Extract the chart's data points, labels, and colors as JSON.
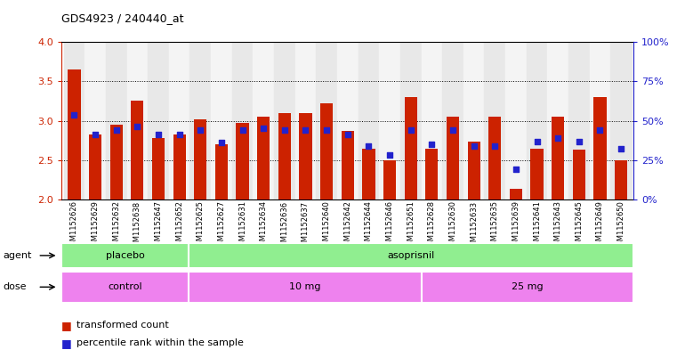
{
  "title": "GDS4923 / 240440_at",
  "samples": [
    "GSM1152626",
    "GSM1152629",
    "GSM1152632",
    "GSM1152638",
    "GSM1152647",
    "GSM1152652",
    "GSM1152625",
    "GSM1152627",
    "GSM1152631",
    "GSM1152634",
    "GSM1152636",
    "GSM1152637",
    "GSM1152640",
    "GSM1152642",
    "GSM1152644",
    "GSM1152646",
    "GSM1152651",
    "GSM1152628",
    "GSM1152630",
    "GSM1152633",
    "GSM1152635",
    "GSM1152639",
    "GSM1152641",
    "GSM1152643",
    "GSM1152645",
    "GSM1152649",
    "GSM1152650"
  ],
  "red_values": [
    3.65,
    2.83,
    2.95,
    3.25,
    2.78,
    2.83,
    3.02,
    2.7,
    2.97,
    3.05,
    3.1,
    3.1,
    3.22,
    2.87,
    2.64,
    2.5,
    3.3,
    2.65,
    3.05,
    2.73,
    3.05,
    2.14,
    2.65,
    3.05,
    2.63,
    3.3,
    2.5
  ],
  "blue_values": [
    3.08,
    2.83,
    2.88,
    2.93,
    2.83,
    2.83,
    2.88,
    2.72,
    2.88,
    2.9,
    2.88,
    2.88,
    2.88,
    2.83,
    2.68,
    2.57,
    2.88,
    2.7,
    2.88,
    2.68,
    2.68,
    2.38,
    2.73,
    2.78,
    2.73,
    2.88,
    2.65
  ],
  "ymin": 2.0,
  "ymax": 4.0,
  "yticks": [
    2.0,
    2.5,
    3.0,
    3.5,
    4.0
  ],
  "right_yticks": [
    0,
    25,
    50,
    75,
    100
  ],
  "agent_groups": [
    {
      "label": "placebo",
      "start": 0,
      "end": 6,
      "color": "#90ee90"
    },
    {
      "label": "asoprisnil",
      "start": 6,
      "end": 27,
      "color": "#90ee90"
    }
  ],
  "dose_groups": [
    {
      "label": "control",
      "start": 0,
      "end": 6,
      "color": "#ee82ee"
    },
    {
      "label": "10 mg",
      "start": 6,
      "end": 17,
      "color": "#ee82ee"
    },
    {
      "label": "25 mg",
      "start": 17,
      "end": 27,
      "color": "#ee82ee"
    }
  ],
  "bar_color": "#cc2200",
  "blue_color": "#2222cc",
  "legend_items": [
    {
      "label": "transformed count",
      "color": "#cc2200"
    },
    {
      "label": "percentile rank within the sample",
      "color": "#2222cc"
    }
  ]
}
